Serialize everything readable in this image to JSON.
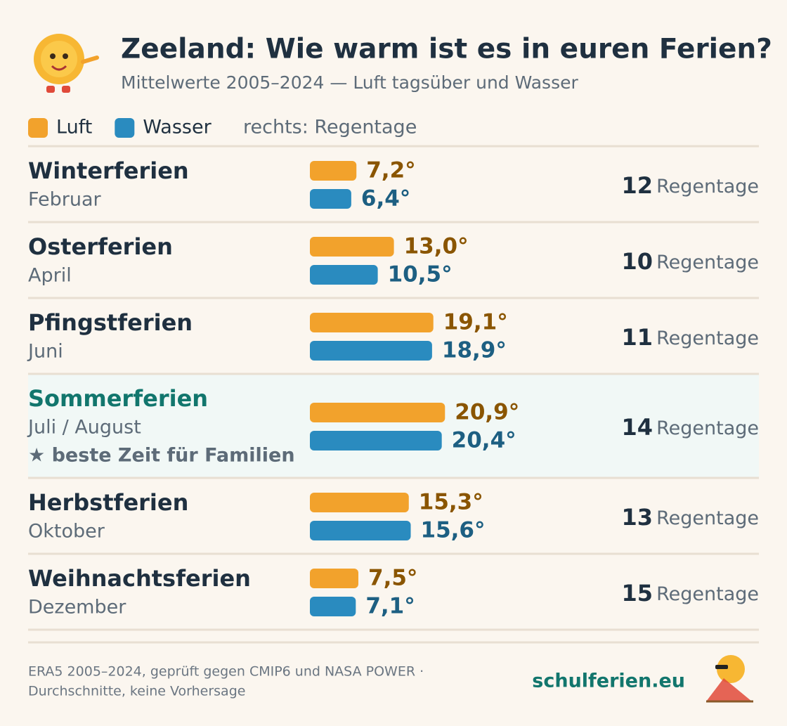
{
  "chart_data": {
    "type": "bar",
    "title": "Zeeland: Wie warm ist es in euren Ferien?",
    "subtitle": "Mittelwerte 2005–2024 — Luft tagsüber und Wasser",
    "legend_note": "rechts: Regentage",
    "categories": [
      "Winterferien",
      "Osterferien",
      "Pfingstferien",
      "Sommerferien",
      "Herbstferien",
      "Weihnachtsferien"
    ],
    "months": [
      "Februar",
      "April",
      "Juni",
      "Juli / August",
      "Oktober",
      "Dezember"
    ],
    "highlight_category": "Sommerferien",
    "highlight_note": "★ beste Zeit für Familien",
    "series": [
      {
        "name": "Luft",
        "color": "#f2a22c",
        "label_color": "#8a5500",
        "values": [
          7.2,
          13.0,
          19.1,
          20.9,
          15.3,
          7.5
        ],
        "value_labels": [
          "7,2°",
          "13,0°",
          "19,1°",
          "20,9°",
          "15,3°",
          "7,5°"
        ]
      },
      {
        "name": "Wasser",
        "color": "#2a8bbf",
        "label_color": "#1d5f82",
        "values": [
          6.4,
          10.5,
          18.9,
          20.4,
          15.6,
          7.1
        ],
        "value_labels": [
          "6,4°",
          "10,5°",
          "18,9°",
          "20,4°",
          "15,6°",
          "7,1°"
        ]
      }
    ],
    "rain_days": [
      12,
      10,
      11,
      14,
      13,
      15
    ],
    "rain_label": "Regentage"
  },
  "footer": {
    "source_line1": "ERA5 2005–2024, geprüft gegen CMIP6 und NASA POWER ·",
    "source_line2": "Durchschnitte, keine Vorhersage",
    "brand": "schulferien.eu"
  }
}
